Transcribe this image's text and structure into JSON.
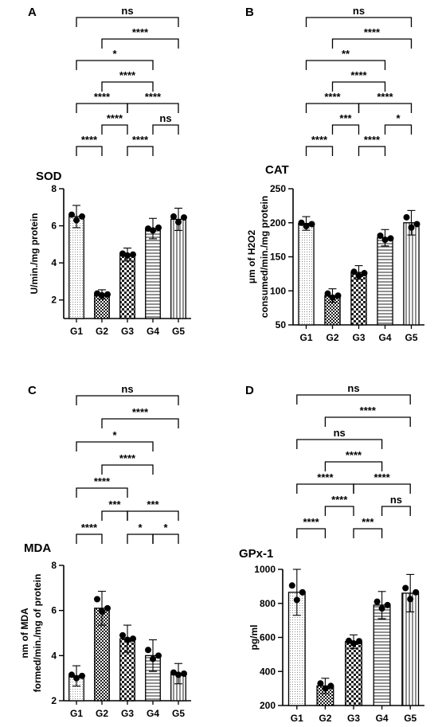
{
  "chart_data": [
    {
      "panel_label": "A",
      "type": "bar",
      "title": "SOD",
      "ylabel": "U/min./mg protein",
      "ylabel_lines": [
        "U/min./mg protein"
      ],
      "ylim": [
        1,
        8
      ],
      "yticks": [
        "2",
        "4",
        "6",
        "8"
      ],
      "ytick_values": [
        2,
        4,
        6,
        8
      ],
      "categories": [
        "G1",
        "G2",
        "G3",
        "G4",
        "G5"
      ],
      "values": [
        6.5,
        2.3,
        4.45,
        5.85,
        6.35
      ],
      "errors": [
        0.6,
        0.25,
        0.35,
        0.55,
        0.6
      ],
      "points": [
        [
          6.6,
          6.3,
          6.5
        ],
        [
          2.35,
          2.25,
          2.3
        ],
        [
          4.5,
          4.4,
          4.45
        ],
        [
          5.85,
          5.75,
          5.9
        ],
        [
          6.5,
          6.2,
          6.45
        ]
      ],
      "significance": [
        {
          "from": "G1",
          "to": "G2",
          "label": "****",
          "level": 0
        },
        {
          "from": "G2",
          "to": "G3",
          "label": "****",
          "level": 1
        },
        {
          "from": "G3",
          "to": "G4",
          "label": "****",
          "level": 0
        },
        {
          "from": "G4",
          "to": "G5",
          "label": "ns",
          "level": 1
        },
        {
          "from": "G1",
          "to": "G3",
          "label": "****",
          "level": 2
        },
        {
          "from": "G3",
          "to": "G5",
          "label": "****",
          "level": 2
        },
        {
          "from": "G2",
          "to": "G4",
          "label": "****",
          "level": 3
        },
        {
          "from": "G1",
          "to": "G4",
          "label": "*",
          "level": 4
        },
        {
          "from": "G2",
          "to": "G5",
          "label": "****",
          "level": 5
        },
        {
          "from": "G1",
          "to": "G5",
          "label": "ns",
          "level": 6
        }
      ]
    },
    {
      "panel_label": "B",
      "type": "bar",
      "title": "CAT",
      "ylabel": "μm of H2O2 consumed/min./mg protein",
      "ylabel_lines": [
        "μm of H2O2",
        "consumed/min./mg protein"
      ],
      "ylim": [
        50,
        250
      ],
      "yticks": [
        "50",
        "100",
        "150",
        "200",
        "250"
      ],
      "ytick_values": [
        50,
        100,
        150,
        200,
        250
      ],
      "categories": [
        "G1",
        "G2",
        "G3",
        "G4",
        "G5"
      ],
      "values": [
        199,
        93,
        127,
        178,
        200
      ],
      "errors": [
        10,
        10,
        10,
        12,
        18
      ],
      "points": [
        [
          200,
          195,
          198
        ],
        [
          96,
          90,
          93
        ],
        [
          128,
          122,
          126
        ],
        [
          181,
          175,
          177
        ],
        [
          208,
          193,
          198
        ]
      ],
      "significance": [
        {
          "from": "G1",
          "to": "G2",
          "label": "****",
          "level": 0
        },
        {
          "from": "G2",
          "to": "G3",
          "label": "***",
          "level": 1
        },
        {
          "from": "G3",
          "to": "G4",
          "label": "****",
          "level": 0
        },
        {
          "from": "G4",
          "to": "G5",
          "label": "*",
          "level": 1
        },
        {
          "from": "G1",
          "to": "G3",
          "label": "****",
          "level": 2
        },
        {
          "from": "G3",
          "to": "G5",
          "label": "****",
          "level": 2
        },
        {
          "from": "G2",
          "to": "G4",
          "label": "****",
          "level": 3
        },
        {
          "from": "G1",
          "to": "G4",
          "label": "**",
          "level": 4
        },
        {
          "from": "G2",
          "to": "G5",
          "label": "****",
          "level": 5
        },
        {
          "from": "G1",
          "to": "G5",
          "label": "ns",
          "level": 6
        }
      ]
    },
    {
      "panel_label": "C",
      "type": "bar",
      "title": "MDA",
      "ylabel": "nm of MDA formed/min./mg of protein",
      "ylabel_lines": [
        "nm of MDA",
        "formed/min./mg of protein"
      ],
      "ylim": [
        2,
        8
      ],
      "yticks": [
        "2",
        "4",
        "6",
        "8"
      ],
      "ytick_values": [
        2,
        4,
        6,
        8
      ],
      "categories": [
        "G1",
        "G2",
        "G3",
        "G4",
        "G5"
      ],
      "values": [
        3.1,
        6.1,
        4.75,
        4.0,
        3.2
      ],
      "errors": [
        0.45,
        0.75,
        0.6,
        0.7,
        0.45
      ],
      "points": [
        [
          3.15,
          3.0,
          3.1
        ],
        [
          6.5,
          5.95,
          6.1
        ],
        [
          4.9,
          4.7,
          4.75
        ],
        [
          4.25,
          3.85,
          4.0
        ],
        [
          3.25,
          3.15,
          3.2
        ]
      ],
      "significance": [
        {
          "from": "G1",
          "to": "G2",
          "label": "****",
          "level": 0
        },
        {
          "from": "G2",
          "to": "G3",
          "label": "***",
          "level": 1
        },
        {
          "from": "G3",
          "to": "G4",
          "label": "*",
          "level": 0
        },
        {
          "from": "G4",
          "to": "G5",
          "label": "*",
          "level": 0
        },
        {
          "from": "G1",
          "to": "G3",
          "label": "****",
          "level": 2
        },
        {
          "from": "G3",
          "to": "G5",
          "label": "***",
          "level": 1
        },
        {
          "from": "G2",
          "to": "G4",
          "label": "****",
          "level": 3
        },
        {
          "from": "G1",
          "to": "G4",
          "label": "*",
          "level": 4
        },
        {
          "from": "G2",
          "to": "G5",
          "label": "****",
          "level": 5
        },
        {
          "from": "G1",
          "to": "G5",
          "label": "ns",
          "level": 6
        }
      ]
    },
    {
      "panel_label": "D",
      "type": "bar",
      "title": "GPx-1",
      "ylabel": "pg/ml",
      "ylabel_lines": [
        "pg/ml"
      ],
      "ylim": [
        200,
        1000
      ],
      "yticks": [
        "200",
        "400",
        "600",
        "800",
        "1000"
      ],
      "ytick_values": [
        200,
        400,
        600,
        800,
        1000
      ],
      "categories": [
        "G1",
        "G2",
        "G3",
        "G4",
        "G5"
      ],
      "values": [
        865,
        315,
        575,
        790,
        860
      ],
      "errors": [
        135,
        45,
        40,
        80,
        110
      ],
      "points": [
        [
          905,
          820,
          865
        ],
        [
          330,
          300,
          315
        ],
        [
          580,
          565,
          578
        ],
        [
          810,
          770,
          790
        ],
        [
          890,
          825,
          865
        ]
      ],
      "significance": [
        {
          "from": "G1",
          "to": "G2",
          "label": "****",
          "level": 0
        },
        {
          "from": "G2",
          "to": "G3",
          "label": "****",
          "level": 1
        },
        {
          "from": "G3",
          "to": "G4",
          "label": "***",
          "level": 0
        },
        {
          "from": "G4",
          "to": "G5",
          "label": "ns",
          "level": 1
        },
        {
          "from": "G1",
          "to": "G3",
          "label": "****",
          "level": 2
        },
        {
          "from": "G3",
          "to": "G5",
          "label": "****",
          "level": 2
        },
        {
          "from": "G2",
          "to": "G4",
          "label": "****",
          "level": 3
        },
        {
          "from": "G1",
          "to": "G4",
          "label": "ns",
          "level": 4
        },
        {
          "from": "G2",
          "to": "G5",
          "label": "****",
          "level": 5
        },
        {
          "from": "G1",
          "to": "G5",
          "label": "ns",
          "level": 6
        }
      ]
    }
  ]
}
